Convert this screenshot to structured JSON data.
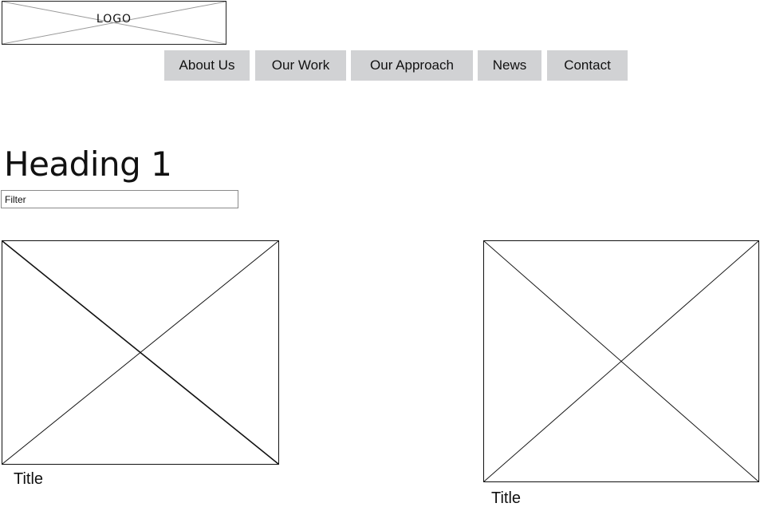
{
  "logo": {
    "text": "LOGO"
  },
  "nav": {
    "items": [
      {
        "label": "About Us"
      },
      {
        "label": "Our Work"
      },
      {
        "label": "Our Approach"
      },
      {
        "label": "News"
      },
      {
        "label": "Contact"
      }
    ]
  },
  "main": {
    "heading": "Heading 1",
    "filter": {
      "placeholder": "Filter",
      "value": ""
    }
  },
  "cards": [
    {
      "title": "Title",
      "image": "placeholder-image-icon"
    },
    {
      "title": "Title",
      "image": "placeholder-image-icon"
    }
  ],
  "colors": {
    "nav_background": "#d1d2d4",
    "border": "#111111",
    "input_border": "#8a8a8a"
  }
}
